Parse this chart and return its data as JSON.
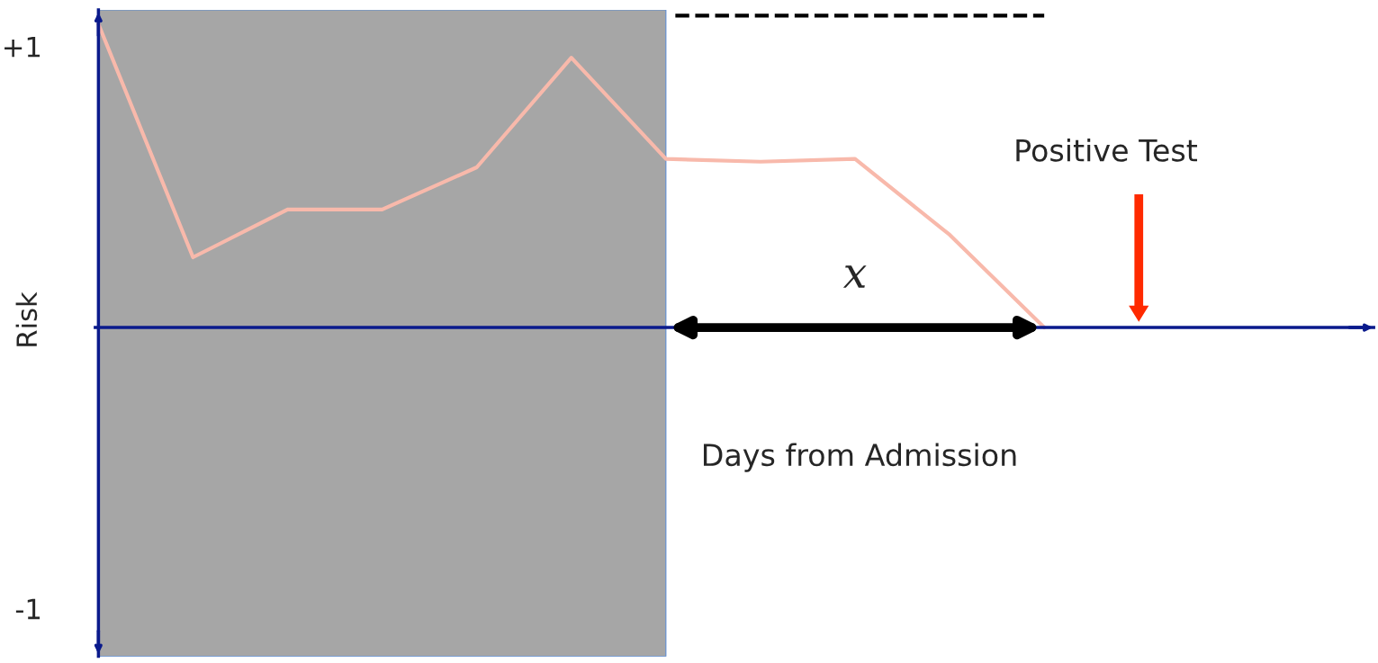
{
  "chart_data": {
    "type": "line",
    "ylabel": "Risk",
    "xlabel": "Days from Admission",
    "categories": [
      null,
      null,
      null,
      null,
      null,
      null,
      null,
      null,
      null,
      null,
      null,
      null
    ],
    "series": [
      {
        "color": "#f8b9ab",
        "values": [
          1.08,
          0.25,
          0.42,
          0.42,
          0.57,
          0.96,
          0.6,
          0.59,
          0.6,
          0.33,
          0.0,
          null
        ]
      }
    ],
    "ylim": [
      -1.17,
      1.13
    ],
    "yticks": [
      {
        "value": 1,
        "label": "+1"
      },
      {
        "value": -1,
        "label": "-1"
      }
    ],
    "ref_lines": [
      {
        "axis": "y",
        "value": 1.11,
        "color": "#000000",
        "line_style": "dashed"
      },
      {
        "axis": "y",
        "value": 0,
        "color": "#0a1a8c",
        "line_style": "solid"
      }
    ],
    "annotations": [
      "x",
      "Positive Test"
    ],
    "grid": false,
    "marker": "none",
    "line_style": "solid"
  }
}
